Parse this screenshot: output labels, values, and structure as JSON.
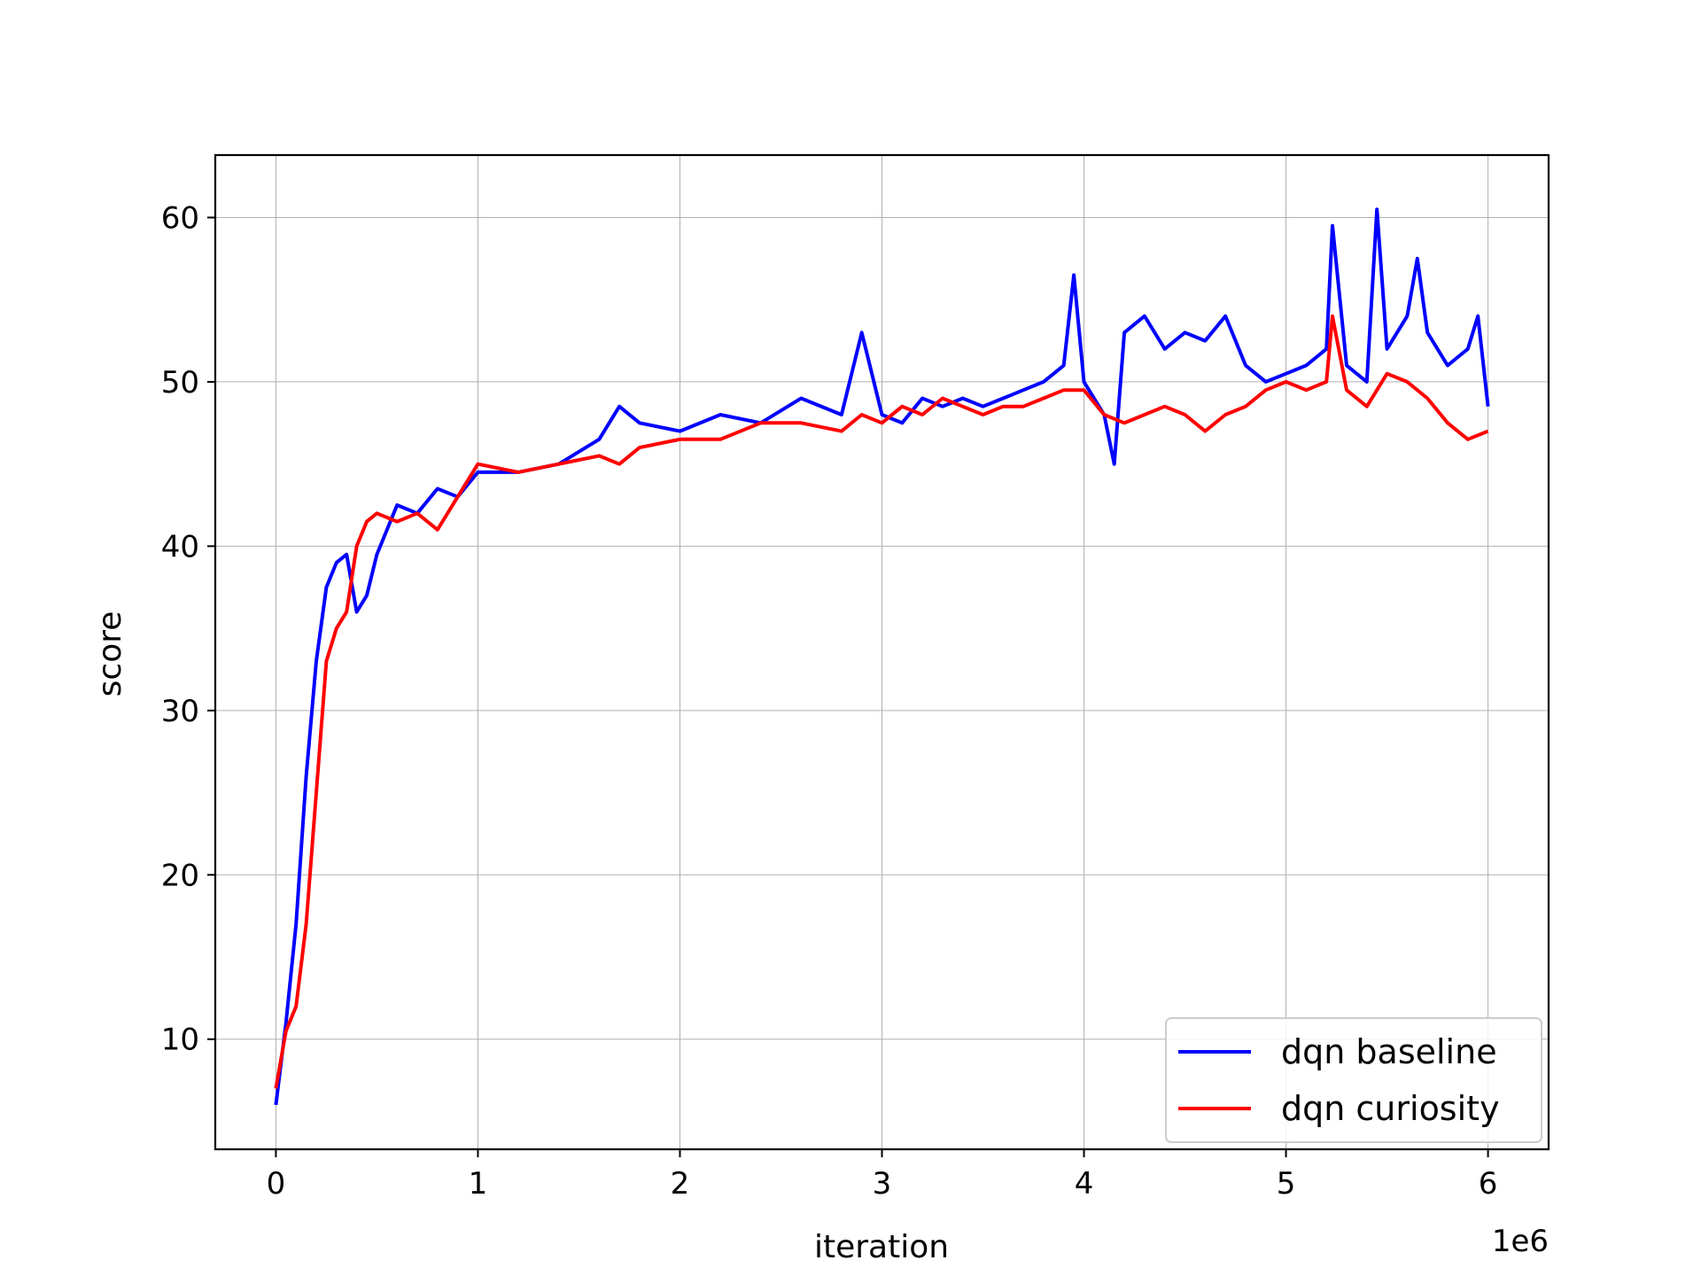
{
  "chart_data": {
    "type": "line",
    "xlabel": "iteration",
    "ylabel": "score",
    "x_offset_label": "1e6",
    "xlim": [
      -0.3,
      6.3
    ],
    "ylim": [
      3.3,
      63.8
    ],
    "x_ticks": [
      0,
      1,
      2,
      3,
      4,
      5,
      6
    ],
    "x_tick_labels": [
      "0",
      "1",
      "2",
      "3",
      "4",
      "5",
      "6"
    ],
    "y_ticks": [
      10,
      20,
      30,
      40,
      50,
      60
    ],
    "y_tick_labels": [
      "10",
      "20",
      "30",
      "40",
      "50",
      "60"
    ],
    "grid": true,
    "legend_position": "lower-right",
    "series": [
      {
        "name": "dqn baseline",
        "color": "#0000ff",
        "x": [
          0,
          0.05,
          0.1,
          0.15,
          0.2,
          0.25,
          0.3,
          0.35,
          0.4,
          0.45,
          0.5,
          0.6,
          0.7,
          0.8,
          0.9,
          1.0,
          1.2,
          1.4,
          1.6,
          1.7,
          1.8,
          2.0,
          2.2,
          2.4,
          2.6,
          2.8,
          2.9,
          3.0,
          3.1,
          3.2,
          3.3,
          3.4,
          3.5,
          3.6,
          3.7,
          3.8,
          3.9,
          3.95,
          4.0,
          4.1,
          4.15,
          4.2,
          4.3,
          4.4,
          4.5,
          4.6,
          4.7,
          4.8,
          4.9,
          5.0,
          5.1,
          5.2,
          5.23,
          5.3,
          5.4,
          5.45,
          5.5,
          5.6,
          5.65,
          5.7,
          5.8,
          5.9,
          5.95,
          6.0
        ],
        "y": [
          6.0,
          11.0,
          17.0,
          26.0,
          33.0,
          37.5,
          39.0,
          39.5,
          36.0,
          37.0,
          39.5,
          42.5,
          42.0,
          43.5,
          43.0,
          44.5,
          44.5,
          45.0,
          46.5,
          48.5,
          47.5,
          47.0,
          48.0,
          47.5,
          49.0,
          48.0,
          53.0,
          48.0,
          47.5,
          49.0,
          48.5,
          49.0,
          48.5,
          49.0,
          49.5,
          50.0,
          51.0,
          56.5,
          50.0,
          48.0,
          45.0,
          53.0,
          54.0,
          52.0,
          53.0,
          52.5,
          54.0,
          51.0,
          50.0,
          50.5,
          51.0,
          52.0,
          59.5,
          51.0,
          50.0,
          60.5,
          52.0,
          54.0,
          57.5,
          53.0,
          51.0,
          52.0,
          54.0,
          48.5
        ]
      },
      {
        "name": "dqn curiosity",
        "color": "#ff0000",
        "x": [
          0,
          0.05,
          0.1,
          0.15,
          0.2,
          0.25,
          0.3,
          0.35,
          0.4,
          0.45,
          0.5,
          0.6,
          0.7,
          0.8,
          0.9,
          1.0,
          1.2,
          1.4,
          1.6,
          1.7,
          1.8,
          2.0,
          2.2,
          2.4,
          2.6,
          2.8,
          2.9,
          3.0,
          3.1,
          3.2,
          3.3,
          3.4,
          3.5,
          3.6,
          3.7,
          3.8,
          3.9,
          4.0,
          4.1,
          4.2,
          4.3,
          4.4,
          4.5,
          4.6,
          4.7,
          4.8,
          4.9,
          5.0,
          5.1,
          5.2,
          5.23,
          5.3,
          5.4,
          5.5,
          5.6,
          5.7,
          5.8,
          5.9,
          6.0
        ],
        "y": [
          7.0,
          10.5,
          12.0,
          17.0,
          25.0,
          33.0,
          35.0,
          36.0,
          40.0,
          41.5,
          42.0,
          41.5,
          42.0,
          41.0,
          43.0,
          45.0,
          44.5,
          45.0,
          45.5,
          45.0,
          46.0,
          46.5,
          46.5,
          47.5,
          47.5,
          47.0,
          48.0,
          47.5,
          48.5,
          48.0,
          49.0,
          48.5,
          48.0,
          48.5,
          48.5,
          49.0,
          49.5,
          49.5,
          48.0,
          47.5,
          48.0,
          48.5,
          48.0,
          47.0,
          48.0,
          48.5,
          49.5,
          50.0,
          49.5,
          50.0,
          54.0,
          49.5,
          48.5,
          50.5,
          50.0,
          49.0,
          47.5,
          46.5,
          47.0
        ]
      }
    ]
  }
}
